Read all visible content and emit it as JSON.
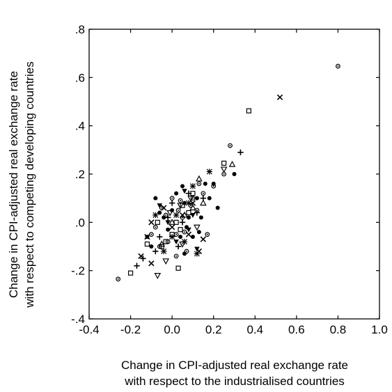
{
  "chart_data": {
    "type": "scatter",
    "title": "",
    "xlabel": [
      "Change in CPI-adjusted real exchange rate",
      "with respect to the industrialised countries"
    ],
    "ylabel": [
      "Change in CPI-adjusted real exchange rate",
      "with respect to competing developing countries"
    ],
    "xlim": [
      -0.4,
      1.0
    ],
    "ylim": [
      -0.4,
      0.8
    ],
    "xticks": [
      -0.4,
      -0.2,
      0.0,
      0.2,
      0.4,
      0.6,
      0.8,
      1.0
    ],
    "xtick_labels": [
      "-0.4",
      "-0.2",
      "0.0",
      "0.2",
      "0.4",
      "0.6",
      "0.8",
      "1.0"
    ],
    "yticks": [
      -0.4,
      -0.2,
      0.0,
      0.2,
      0.4,
      0.6,
      0.8
    ],
    "ytick_labels": [
      "-.4",
      "-.2",
      ".0",
      ".2",
      ".4",
      ".6",
      ".8"
    ],
    "grid": false,
    "legend": "none",
    "series": [
      {
        "marker": "circle-dot",
        "points": [
          [
            0.8,
            0.647
          ],
          [
            -0.26,
            -0.235
          ],
          [
            0.28,
            0.318
          ],
          [
            0.02,
            -0.05
          ],
          [
            0.05,
            0.02
          ],
          [
            -0.05,
            0.06
          ],
          [
            0.1,
            0.1
          ],
          [
            0.15,
            0.12
          ],
          [
            0.17,
            -0.05
          ],
          [
            0.07,
            -0.12
          ],
          [
            0.02,
            -0.14
          ],
          [
            -0.02,
            -0.08
          ],
          [
            0.12,
            0.05
          ],
          [
            -0.08,
            -0.02
          ],
          [
            0.04,
            0.09
          ],
          [
            -0.03,
            0.03
          ],
          [
            0.06,
            -0.04
          ],
          [
            0.2,
            0.15
          ],
          [
            0.25,
            0.2
          ],
          [
            -0.1,
            -0.05
          ],
          [
            0.09,
            0.07
          ],
          [
            0.0,
            0.1
          ],
          [
            0.13,
            0.16
          ],
          [
            -0.06,
            -0.1
          ],
          [
            0.03,
            0.05
          ]
        ]
      },
      {
        "marker": "filled-circle",
        "points": [
          [
            0.3,
            0.2
          ],
          [
            0.22,
            0.06
          ],
          [
            0.16,
            0.16
          ],
          [
            0.2,
            0.16
          ],
          [
            0.06,
            0.08
          ],
          [
            -0.08,
            0.1
          ],
          [
            0.1,
            -0.06
          ],
          [
            0.13,
            -0.04
          ],
          [
            -0.04,
            0.02
          ],
          [
            0.0,
            0.05
          ],
          [
            0.08,
            0.02
          ],
          [
            -0.02,
            -0.03
          ],
          [
            0.04,
            -0.06
          ],
          [
            0.12,
            0.1
          ],
          [
            -0.06,
            0.04
          ],
          [
            0.02,
            0.12
          ],
          [
            0.18,
            0.1
          ],
          [
            -0.1,
            -0.1
          ],
          [
            0.05,
            0.15
          ],
          [
            0.07,
            -0.02
          ],
          [
            -0.12,
            -0.06
          ],
          [
            0.14,
            0.02
          ],
          [
            0.06,
            -0.13
          ]
        ]
      },
      {
        "marker": "square",
        "points": [
          [
            0.37,
            0.462
          ],
          [
            0.25,
            0.245
          ],
          [
            -0.2,
            -0.21
          ],
          [
            0.03,
            -0.19
          ],
          [
            -0.05,
            -0.1
          ],
          [
            -0.07,
            0.0
          ],
          [
            0.0,
            -0.05
          ],
          [
            0.05,
            0.07
          ],
          [
            0.1,
            0.12
          ],
          [
            0.02,
            0.0
          ],
          [
            -0.03,
            -0.08
          ],
          [
            0.08,
            0.04
          ],
          [
            -0.12,
            -0.09
          ],
          [
            0.04,
            -0.03
          ]
        ]
      },
      {
        "marker": "x-mark",
        "points": [
          [
            0.52,
            0.518
          ],
          [
            -0.1,
            -0.17
          ],
          [
            -0.15,
            -0.14
          ],
          [
            0.15,
            -0.07
          ],
          [
            -0.1,
            0.0
          ],
          [
            -0.12,
            -0.06
          ],
          [
            0.13,
            -0.12
          ],
          [
            0.05,
            0.03
          ],
          [
            0.0,
            -0.02
          ],
          [
            0.1,
            0.08
          ],
          [
            -0.04,
            0.06
          ],
          [
            0.08,
            -0.05
          ]
        ]
      },
      {
        "marker": "plus",
        "points": [
          [
            0.33,
            0.29
          ],
          [
            -0.17,
            -0.18
          ],
          [
            -0.14,
            -0.15
          ],
          [
            -0.08,
            -0.12
          ],
          [
            0.05,
            0.0
          ],
          [
            0.0,
            0.08
          ],
          [
            -0.06,
            -0.06
          ],
          [
            0.12,
            0.04
          ],
          [
            0.03,
            -0.1
          ],
          [
            0.08,
            0.12
          ],
          [
            -0.02,
            0.02
          ],
          [
            0.15,
            0.1
          ]
        ]
      },
      {
        "marker": "asterisk",
        "points": [
          [
            0.18,
            0.21
          ],
          [
            0.08,
            0.08
          ],
          [
            -0.04,
            -0.12
          ],
          [
            0.12,
            -0.13
          ],
          [
            0.02,
            0.03
          ],
          [
            0.06,
            -0.08
          ],
          [
            -0.08,
            0.03
          ],
          [
            0.1,
            0.15
          ],
          [
            0.0,
            -0.06
          ]
        ]
      },
      {
        "marker": "triangle-up",
        "points": [
          [
            0.29,
            0.24
          ],
          [
            0.13,
            0.18
          ],
          [
            0.06,
            0.03
          ],
          [
            -0.05,
            -0.09
          ],
          [
            0.1,
            0.06
          ],
          [
            0.0,
            0.0
          ],
          [
            0.15,
            0.08
          ]
        ]
      },
      {
        "marker": "triangle-down",
        "points": [
          [
            0.25,
            0.22
          ],
          [
            -0.07,
            -0.22
          ],
          [
            -0.03,
            -0.16
          ],
          [
            0.05,
            -0.09
          ],
          [
            0.09,
            0.1
          ],
          [
            -0.01,
            0.04
          ],
          [
            0.12,
            -0.02
          ],
          [
            0.04,
            0.07
          ]
        ]
      },
      {
        "marker": "filled-triangle-down",
        "points": [
          [
            0.12,
            -0.11
          ],
          [
            0.06,
            0.13
          ],
          [
            -0.02,
            0.0
          ],
          [
            0.02,
            -0.08
          ],
          [
            0.1,
            0.03
          ],
          [
            -0.06,
            0.07
          ],
          [
            0.08,
            -0.03
          ]
        ]
      }
    ]
  }
}
